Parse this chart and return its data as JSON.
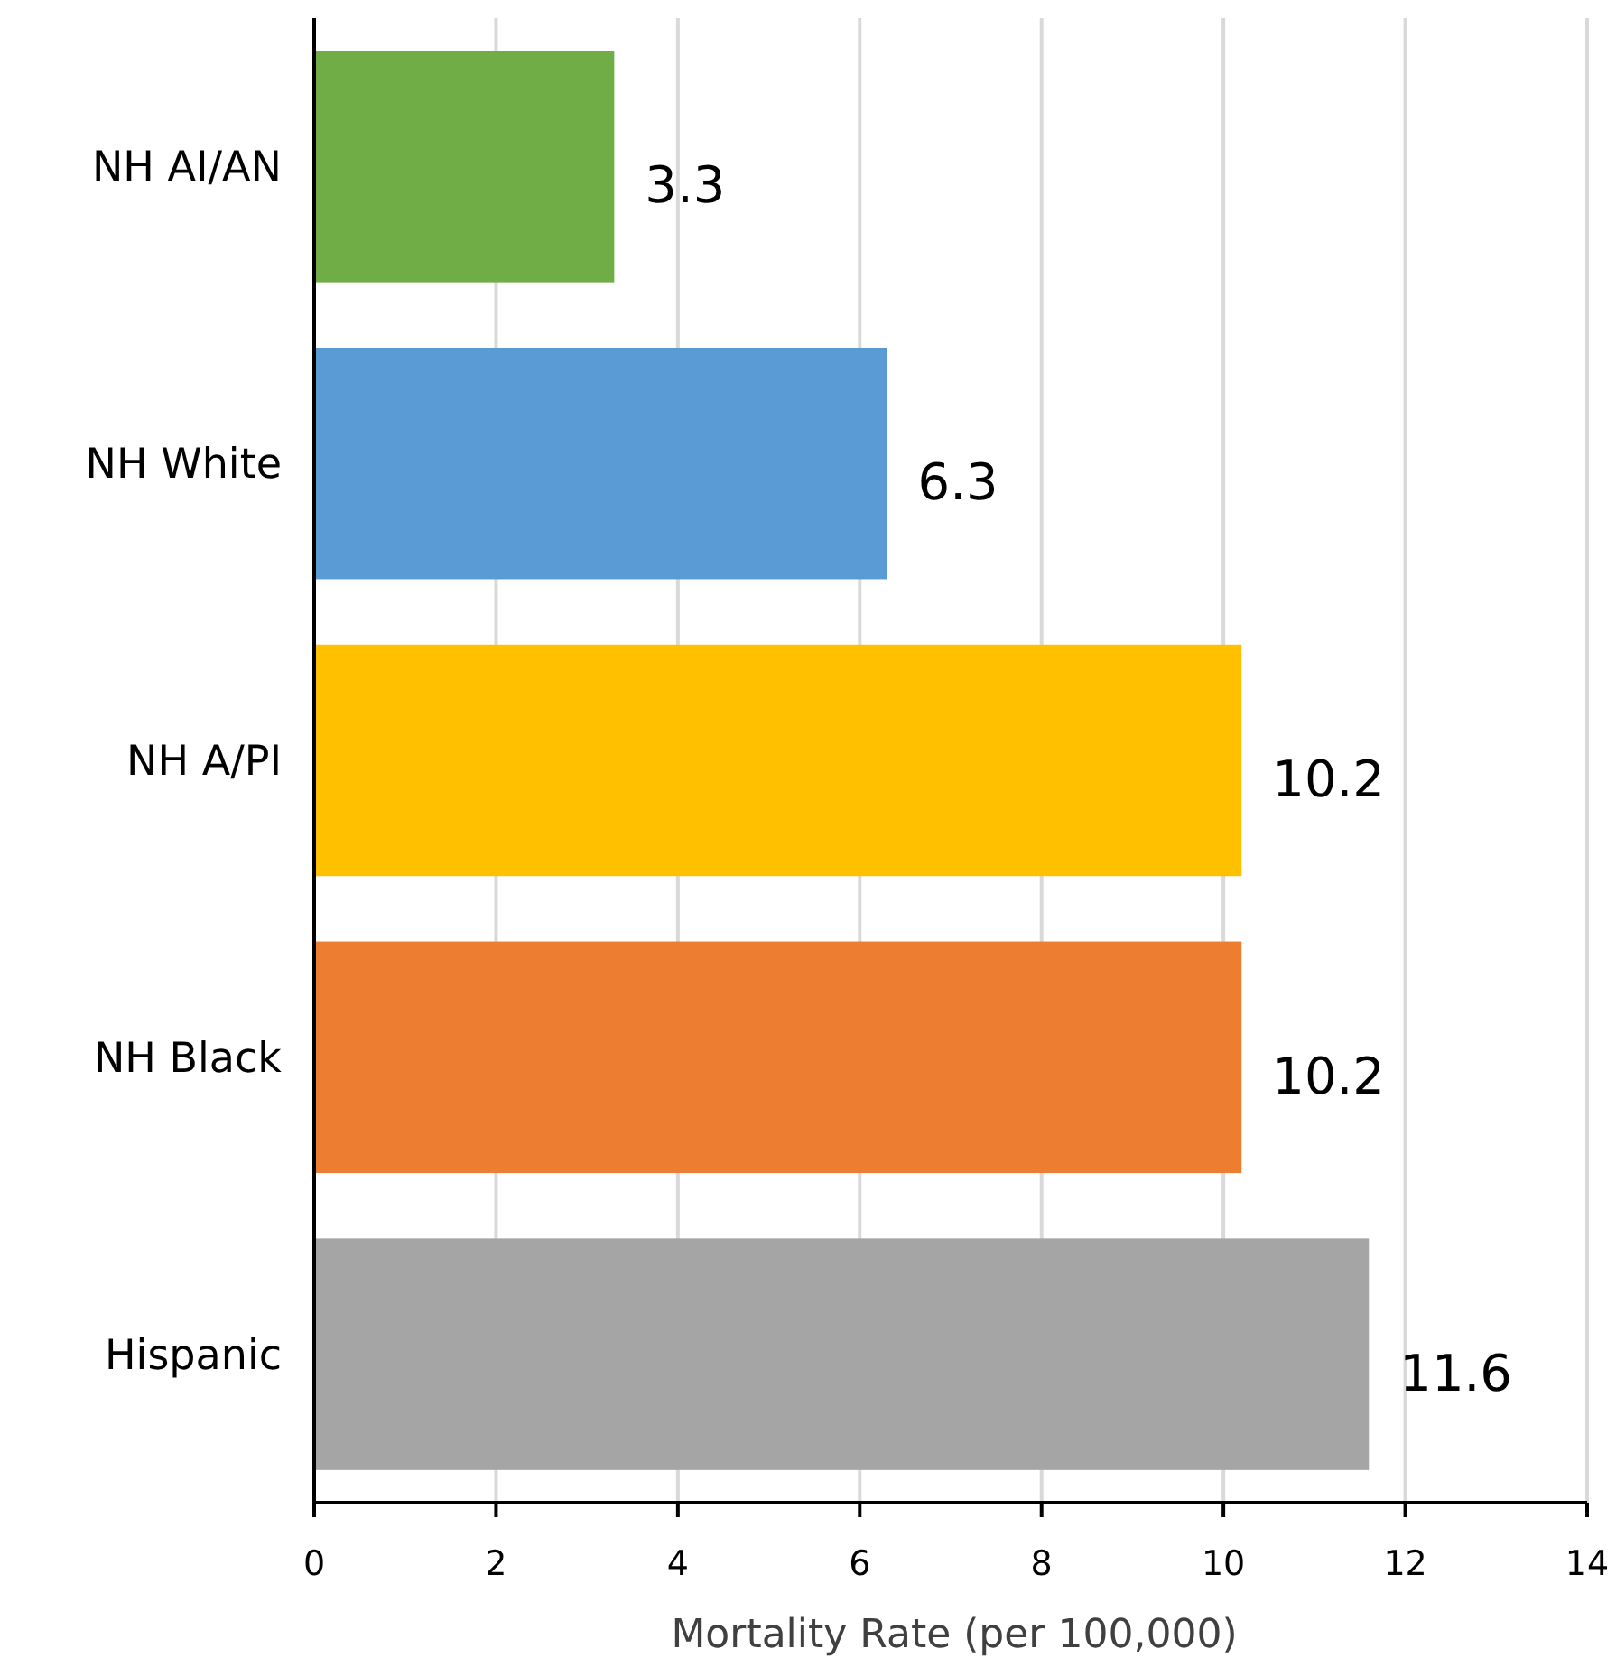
{
  "chart_data": {
    "type": "bar",
    "orientation": "horizontal",
    "xlabel": "Mortality Rate (per 100,000)",
    "categories": [
      "NH AI/AN",
      "NH White",
      "NH A/PI",
      "NH Black",
      "Hispanic"
    ],
    "values": [
      3.3,
      6.3,
      10.2,
      10.2,
      11.6
    ],
    "colors": [
      "#70ad47",
      "#5b9bd5",
      "#ffc000",
      "#ed7d31",
      "#a5a5a5"
    ],
    "xlim": [
      0,
      14
    ],
    "xticks": [
      0,
      2,
      4,
      6,
      8,
      10,
      12,
      14
    ],
    "grid": "x",
    "data_labels": true
  }
}
